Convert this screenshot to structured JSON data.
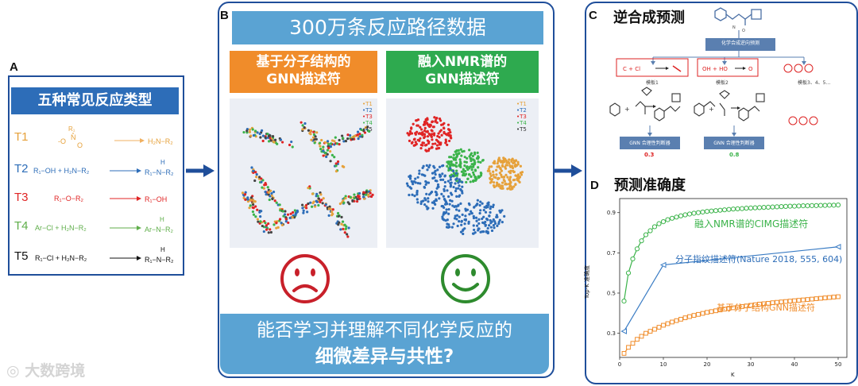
{
  "panel_a": {
    "label": "A",
    "title": "五种常见反应类型",
    "rows": [
      {
        "code": "T1",
        "reactant": "R1-N(O)O",
        "product": "H2N-R2",
        "color": "#e6a13a"
      },
      {
        "code": "T2",
        "reactant": "R1-OH + H2N-R2",
        "product": "R1-NH-R2",
        "color": "#2d6db8"
      },
      {
        "code": "T3",
        "reactant": "R1-O-R2",
        "product": "R1-OH",
        "color": "#e02424"
      },
      {
        "code": "T4",
        "reactant": "Ar-Cl + H2N-R2",
        "product": "Ar-NH-R2",
        "color": "#5fae4a"
      },
      {
        "code": "T5",
        "reactant": "R1-Cl + H2N-R2",
        "product": "R1-NH-R2",
        "color": "#111111"
      }
    ]
  },
  "panel_b": {
    "label": "B",
    "banner": "300万条反应路径数据",
    "left_header": [
      "基于分子结构的",
      "GNN描述符"
    ],
    "right_header": [
      "融入NMR谱的",
      "GNN描述符"
    ],
    "legend": [
      "T1",
      "T2",
      "T3",
      "T4",
      "T5"
    ],
    "question_line1": "能否学习并理解不同化学反应的",
    "question_line2": "细微差异与共性?",
    "colors": {
      "orange": "#f08c2a",
      "green": "#2eaa4f",
      "sad": "#c8202a",
      "happy": "#2e8b2e"
    }
  },
  "panel_c": {
    "label": "C",
    "title": "逆合成预测",
    "box_top": "化学合成逆向预测",
    "template1": "模板1",
    "template2": "模板2",
    "template3": "模板3、4、5…",
    "judge1": "GNN 合理性判断器",
    "judge2": "GNN 合理性判断器",
    "score1": "0.3",
    "score2": "0.8"
  },
  "panel_d": {
    "label": "D",
    "title": "预测准确度",
    "ylabel": "Top-K 准确度",
    "xlabel": "K",
    "series_labels": [
      "融入NMR谱的CIMG描述符",
      "分子指纹描述符(Nature 2018, 555, 604)",
      "基于分子结构GNN描述符"
    ]
  },
  "watermark": "大数跨境",
  "chart_data": {
    "type": "line",
    "title": "",
    "xlabel": "K",
    "ylabel": "Top-K 准确度",
    "xlim": [
      0,
      52
    ],
    "ylim": [
      0.18,
      0.97
    ],
    "xticks": [
      0,
      10,
      20,
      30,
      40,
      50
    ],
    "yticks": [
      0.3,
      0.5,
      0.7,
      0.9
    ],
    "series": [
      {
        "name": "融入NMR谱的CIMG描述符",
        "color": "#3bb34a",
        "marker": "circle",
        "x": [
          1,
          2,
          3,
          4,
          5,
          6,
          7,
          8,
          9,
          10,
          11,
          12,
          13,
          14,
          15,
          16,
          17,
          18,
          19,
          20,
          21,
          22,
          23,
          24,
          25,
          26,
          27,
          28,
          29,
          30,
          31,
          32,
          33,
          34,
          35,
          36,
          37,
          38,
          39,
          40,
          41,
          42,
          43,
          44,
          45,
          46,
          47,
          48,
          49,
          50
        ],
        "y": [
          0.46,
          0.6,
          0.67,
          0.72,
          0.76,
          0.79,
          0.81,
          0.83,
          0.845,
          0.855,
          0.865,
          0.872,
          0.878,
          0.884,
          0.889,
          0.893,
          0.897,
          0.9,
          0.903,
          0.906,
          0.908,
          0.91,
          0.912,
          0.914,
          0.916,
          0.918,
          0.919,
          0.92,
          0.922,
          0.923,
          0.924,
          0.925,
          0.926,
          0.927,
          0.928,
          0.929,
          0.93,
          0.931,
          0.932,
          0.932,
          0.933,
          0.934,
          0.934,
          0.935,
          0.935,
          0.936,
          0.936,
          0.937,
          0.937,
          0.938
        ]
      },
      {
        "name": "分子指纹描述符(Nature 2018, 555, 604)",
        "color": "#3a7cc4",
        "marker": "triangle",
        "x": [
          1,
          10,
          50
        ],
        "y": [
          0.31,
          0.64,
          0.73
        ]
      },
      {
        "name": "基于分子结构GNN描述符",
        "color": "#f08c2a",
        "marker": "square",
        "x": [
          1,
          2,
          3,
          4,
          5,
          6,
          7,
          8,
          9,
          10,
          11,
          12,
          13,
          14,
          15,
          16,
          17,
          18,
          19,
          20,
          21,
          22,
          23,
          24,
          25,
          26,
          27,
          28,
          29,
          30,
          31,
          32,
          33,
          34,
          35,
          36,
          37,
          38,
          39,
          40,
          41,
          42,
          43,
          44,
          45,
          46,
          47,
          48,
          49,
          50
        ],
        "y": [
          0.2,
          0.23,
          0.25,
          0.27,
          0.285,
          0.3,
          0.31,
          0.32,
          0.33,
          0.34,
          0.348,
          0.356,
          0.363,
          0.37,
          0.377,
          0.383,
          0.389,
          0.394,
          0.399,
          0.404,
          0.408,
          0.412,
          0.416,
          0.42,
          0.424,
          0.427,
          0.43,
          0.433,
          0.436,
          0.439,
          0.442,
          0.445,
          0.447,
          0.449,
          0.452,
          0.454,
          0.456,
          0.458,
          0.46,
          0.462,
          0.464,
          0.466,
          0.468,
          0.47,
          0.472,
          0.474,
          0.476,
          0.478,
          0.48,
          0.482
        ]
      }
    ]
  }
}
